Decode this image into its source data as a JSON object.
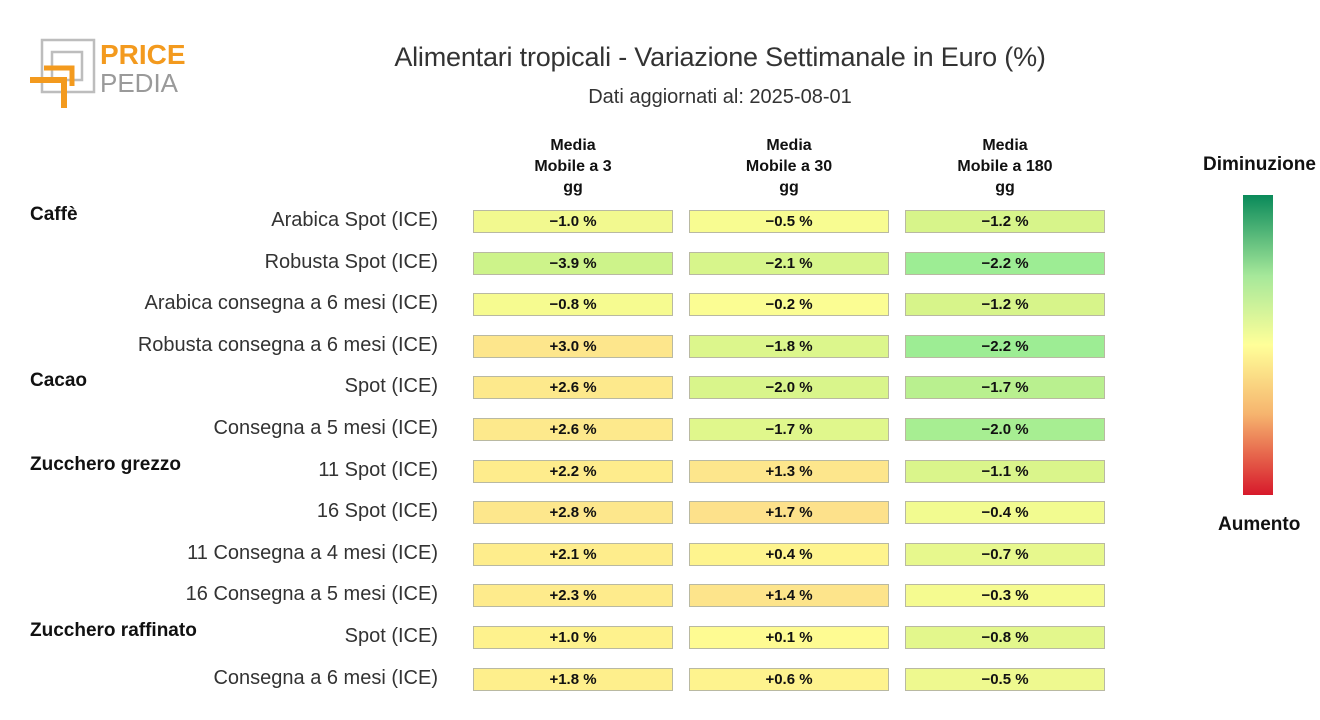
{
  "brand": {
    "line1": "PRICE",
    "line2": "PEDIA"
  },
  "title": "Alimentari tropicali - Variazione Settimanale in Euro (%)",
  "subtitle": "Dati aggiornati al: 2025-08-01",
  "legend": {
    "top": "Diminuzione",
    "bottom": "Aumento",
    "colors": [
      "#0a8a5a",
      "#a6e89a",
      "#ffff99",
      "#f6b46e",
      "#d7192b"
    ]
  },
  "chart_data": {
    "type": "heatmap",
    "columns": [
      {
        "lines": [
          "Media",
          "Mobile a 3",
          "gg"
        ]
      },
      {
        "lines": [
          "Media",
          "Mobile a 30",
          "gg"
        ]
      },
      {
        "lines": [
          "Media",
          "Mobile a 180",
          "gg"
        ]
      }
    ],
    "groups": [
      {
        "name": "Caffè",
        "rows": [
          {
            "label": "Arabica Spot (ICE)",
            "values": [
              "−1.0 %",
              "−0.5 %",
              "−1.2 %"
            ],
            "colors": [
              "#f2f98f",
              "#f8fc91",
              "#d7f48a"
            ]
          },
          {
            "label": "Robusta Spot (ICE)",
            "values": [
              "−3.9 %",
              "−2.1 %",
              "−2.2 %"
            ],
            "colors": [
              "#cdf38a",
              "#d7f58b",
              "#9ded94"
            ]
          },
          {
            "label": "Arabica consegna a 6 mesi (ICE)",
            "values": [
              "−0.8 %",
              "−0.2 %",
              "−1.2 %"
            ],
            "colors": [
              "#f6fb90",
              "#fbfd93",
              "#d7f48a"
            ]
          },
          {
            "label": "Robusta consegna a 6 mesi (ICE)",
            "values": [
              "+3.0 %",
              "−1.8 %",
              "−2.2 %"
            ],
            "colors": [
              "#fde68c",
              "#dcf68c",
              "#9ded94"
            ]
          }
        ]
      },
      {
        "name": "Cacao",
        "rows": [
          {
            "label": "Spot (ICE)",
            "values": [
              "+2.6 %",
              "−2.0 %",
              "−1.7 %"
            ],
            "colors": [
              "#fde98c",
              "#d9f58b",
              "#b9f08f"
            ]
          },
          {
            "label": "Consegna a 5 mesi (ICE)",
            "values": [
              "+2.6 %",
              "−1.7 %",
              "−2.0 %"
            ],
            "colors": [
              "#fde98c",
              "#e0f78c",
              "#a7ee92"
            ]
          }
        ]
      },
      {
        "name": "Zucchero grezzo",
        "rows": [
          {
            "label": "11 Spot (ICE)",
            "values": [
              "+2.2 %",
              "+1.3 %",
              "−1.1 %"
            ],
            "colors": [
              "#feec8c",
              "#fde68c",
              "#daf58b"
            ]
          },
          {
            "label": "16 Spot (ICE)",
            "values": [
              "+2.8 %",
              "+1.7 %",
              "−0.4 %"
            ],
            "colors": [
              "#fde78c",
              "#fde18b",
              "#f2fb90"
            ]
          },
          {
            "label": "11 Consegna a 4 mesi (ICE)",
            "values": [
              "+2.1 %",
              "+0.4 %",
              "−0.7 %"
            ],
            "colors": [
              "#feed8c",
              "#fef48e",
              "#e7f88d"
            ]
          },
          {
            "label": "16 Consegna a 5 mesi (ICE)",
            "values": [
              "+2.3 %",
              "+1.4 %",
              "−0.3 %"
            ],
            "colors": [
              "#feeb8c",
              "#fde48b",
              "#f5fb90"
            ]
          }
        ]
      },
      {
        "name": "Zucchero raffinato",
        "rows": [
          {
            "label": "Spot (ICE)",
            "values": [
              "+1.0 %",
              "+0.1 %",
              "−0.8 %"
            ],
            "colors": [
              "#fef28d",
              "#fefb92",
              "#e3f78c"
            ]
          },
          {
            "label": "Consegna a 6 mesi (ICE)",
            "values": [
              "+1.8 %",
              "+0.6 %",
              "−0.5 %"
            ],
            "colors": [
              "#feef8c",
              "#fef38e",
              "#eef98f"
            ]
          }
        ]
      }
    ]
  }
}
